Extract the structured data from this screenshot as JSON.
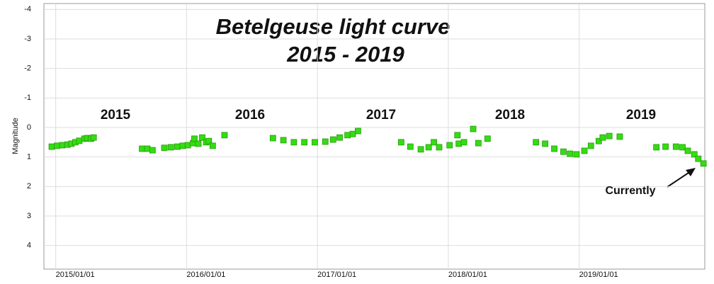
{
  "chart_data": {
    "type": "scatter",
    "title": "Betelgeuse light curve",
    "subtitle": "2015 - 2019",
    "y_label": "Magnitude",
    "color": "#33dd11",
    "y_inverted": true,
    "grid": true,
    "xlim": [
      2014.91,
      2019.96
    ],
    "xticks": [
      {
        "value": 2015,
        "label": "2015/01/01"
      },
      {
        "value": 2016,
        "label": "2016/01/01"
      },
      {
        "value": 2017,
        "label": "2017/01/01"
      },
      {
        "value": 2018,
        "label": "2018/01/01"
      },
      {
        "value": 2019,
        "label": "2019/01/01"
      }
    ],
    "ylim": [
      -4.2,
      4.8
    ],
    "yticks": [
      -4,
      -3,
      -2,
      -1,
      0,
      1,
      2,
      3,
      4
    ],
    "annotations": [
      "2015",
      "2016",
      "2017",
      "2018",
      "2019",
      "Currently"
    ],
    "x": [
      2014.97,
      2015.01,
      2015.05,
      2015.09,
      2015.12,
      2015.15,
      2015.18,
      2015.22,
      2015.24,
      2015.27,
      2015.29,
      2015.66,
      2015.7,
      2015.74,
      2015.83,
      2015.88,
      2015.93,
      2015.97,
      2016.01,
      2016.05,
      2016.06,
      2016.09,
      2016.12,
      2016.15,
      2016.17,
      2016.2,
      2016.29,
      2016.66,
      2016.74,
      2016.82,
      2016.9,
      2016.98,
      2017.06,
      2017.12,
      2017.17,
      2017.23,
      2017.27,
      2017.31,
      2017.64,
      2017.71,
      2017.79,
      2017.85,
      2017.89,
      2017.93,
      2018.01,
      2018.08,
      2018.07,
      2018.12,
      2018.19,
      2018.23,
      2018.3,
      2018.67,
      2018.74,
      2018.81,
      2018.88,
      2018.93,
      2018.98,
      2019.04,
      2019.09,
      2019.15,
      2019.18,
      2019.23,
      2019.31,
      2019.59,
      2019.66,
      2019.74,
      2019.79,
      2019.83,
      2019.88,
      2019.91,
      2019.95
    ],
    "values": [
      0.65,
      0.62,
      0.6,
      0.58,
      0.55,
      0.5,
      0.45,
      0.38,
      0.36,
      0.38,
      0.34,
      0.72,
      0.72,
      0.77,
      0.69,
      0.67,
      0.65,
      0.62,
      0.6,
      0.53,
      0.38,
      0.55,
      0.34,
      0.5,
      0.46,
      0.62,
      0.26,
      0.36,
      0.43,
      0.5,
      0.5,
      0.5,
      0.48,
      0.41,
      0.34,
      0.26,
      0.22,
      0.12,
      0.5,
      0.65,
      0.74,
      0.67,
      0.5,
      0.67,
      0.6,
      0.55,
      0.26,
      0.5,
      0.05,
      0.53,
      0.38,
      0.5,
      0.55,
      0.72,
      0.82,
      0.89,
      0.91,
      0.79,
      0.62,
      0.46,
      0.34,
      0.29,
      0.31,
      0.67,
      0.65,
      0.65,
      0.67,
      0.79,
      0.91,
      1.06,
      1.22
    ]
  }
}
